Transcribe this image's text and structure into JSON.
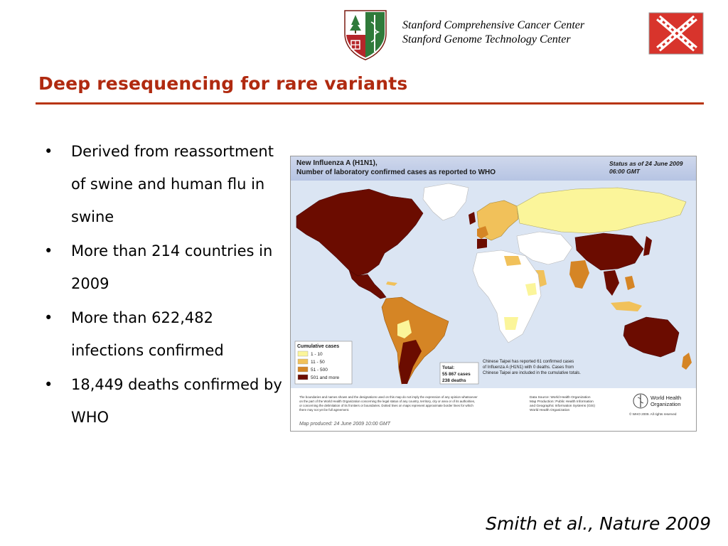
{
  "header": {
    "center_line1": "Stanford Comprehensive Cancer Center",
    "center_line2": "Stanford Genome Technology Center",
    "left_logo": "stanford-medicine-shield-logo",
    "right_logo": "genome-center-x-logo"
  },
  "title": "Deep resequencing for rare variants",
  "accent_color": "#b02a10",
  "bullets": [
    "Derived from reassortment of swine and human flu in swine",
    "More than 214 countries in 2009",
    "More than 622,482 infections confirmed",
    "18,449 deaths confirmed by WHO"
  ],
  "map": {
    "title_line1": "New Influenza A (H1N1),",
    "title_line2": "Number of  laboratory confirmed cases as reported to WHO",
    "status_line1": "Status as of 24 June 2009",
    "status_line2": "06:00 GMT",
    "legend_title": "Cumulative cases",
    "legend_items": [
      {
        "label": "1 - 10",
        "color": "#fbf59a"
      },
      {
        "label": "11 - 50",
        "color": "#f1c15a"
      },
      {
        "label": "51 - 500",
        "color": "#d58525"
      },
      {
        "label": "501 and more",
        "color": "#6b0c00"
      }
    ],
    "total_label": "Total:",
    "total_cases": "55 867 cases",
    "total_deaths": "238 deaths",
    "taipei_note_1": "Chinese Taipei has reported 61 confirmed cases",
    "taipei_note_2": "of Influenza A (H1N1) with 0 deaths. Cases from",
    "taipei_note_3": "Chinese Taipei are included in the cumulative totals.",
    "disclaimer_1": "The boundaries and names shown and the designations used on this map do not imply the expression of any opinion whatsoever",
    "disclaimer_2": "on the part of the World Health Organization concerning the legal status of any country, territory, city or area or of its authorities,",
    "disclaimer_3": "or concerning the delimitation of its frontiers or boundaries. Dotted lines on maps represent approximate border lines for which",
    "disclaimer_4": "there may not yet be full agreement.",
    "source_1": "Data Source: World Health Organization",
    "source_2": "Map Production: Public Health Information",
    "source_3": "and Geographic Information Systems (GIS)",
    "source_4": "World Health Organization",
    "who_line1": "World Health",
    "who_line2": "Organization",
    "copyright": "© WHO 2009. All rights reserved",
    "produced": "Map produced: 24 June 2009 10:00 GMT"
  },
  "citation": "Smith et al., Nature 2009"
}
